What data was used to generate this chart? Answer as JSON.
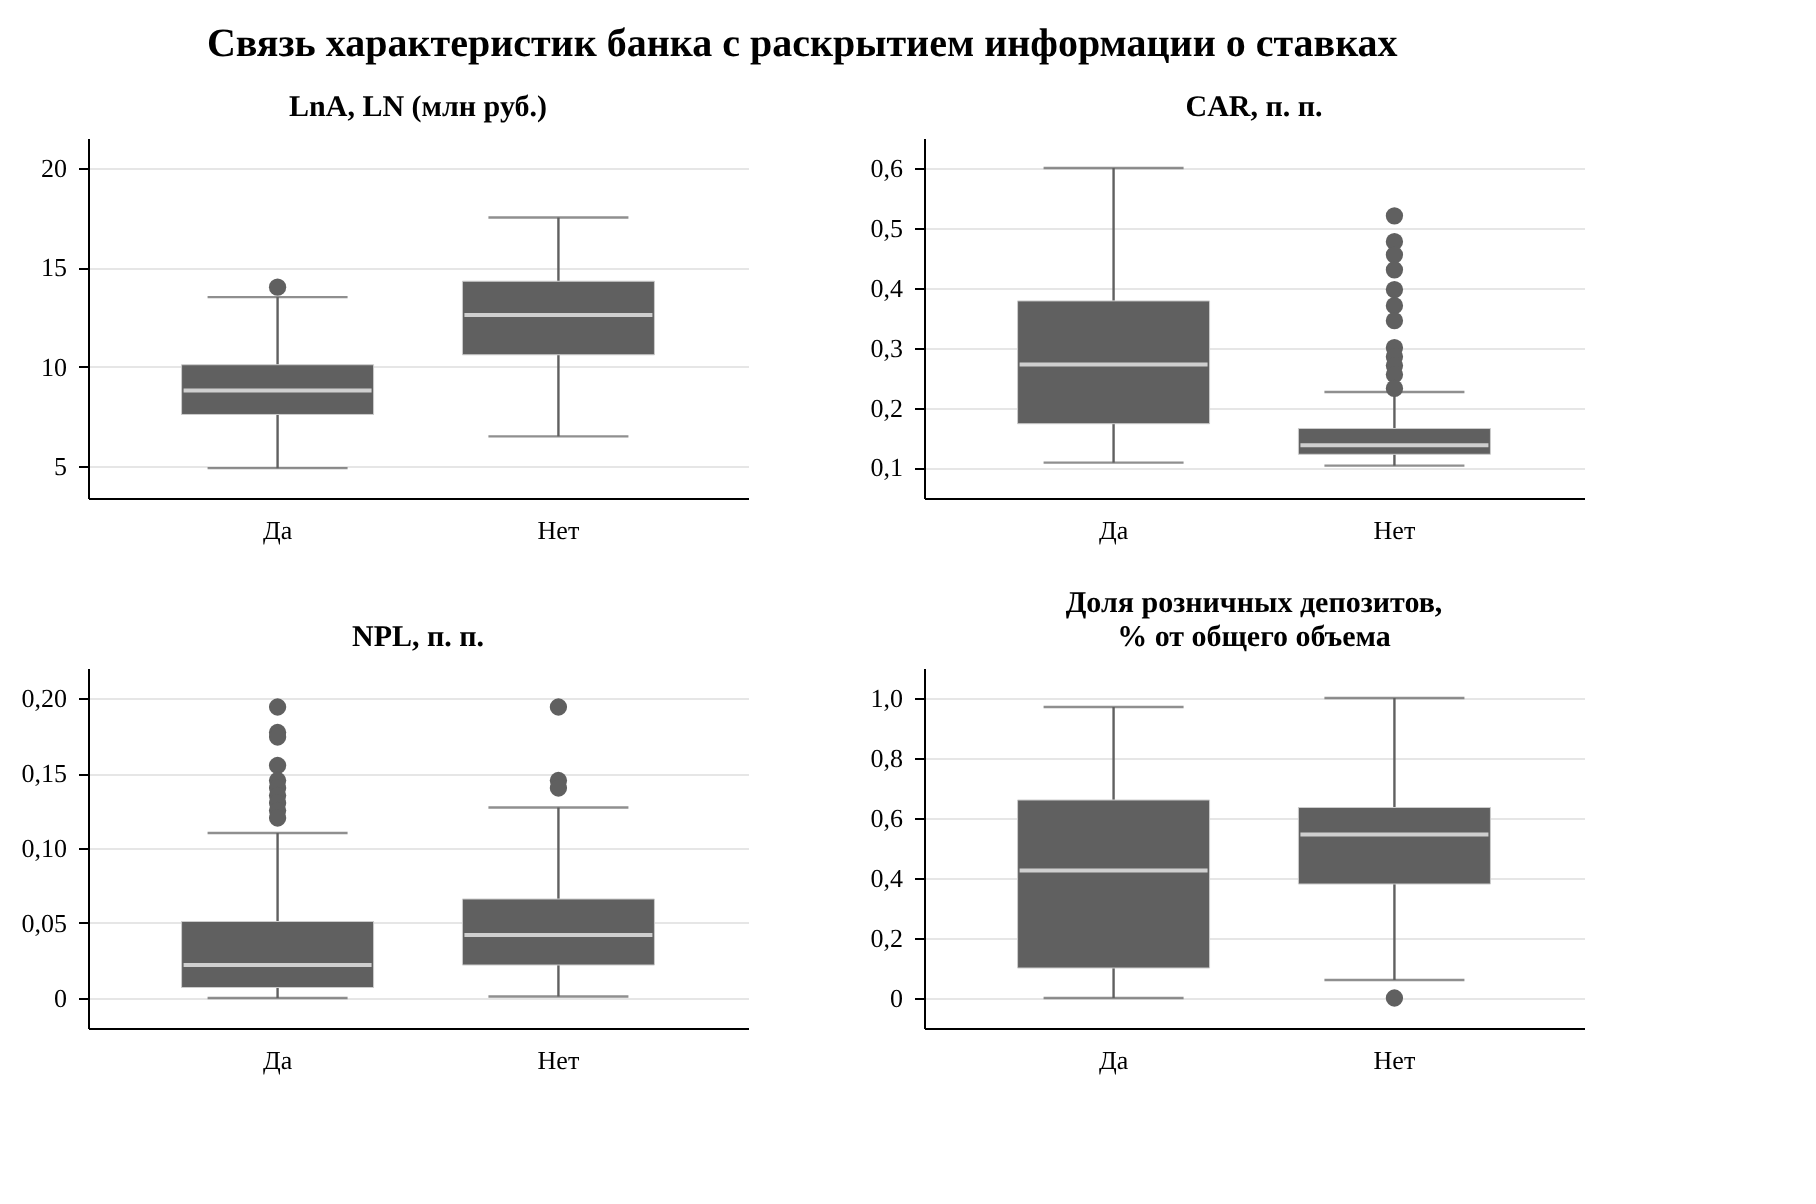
{
  "chart_data": [
    {
      "type": "box",
      "title": "LnA, LN (млн руб.)",
      "annotations": [
        "Связь характеристик банка с раскрытием информации о ставках"
      ],
      "categories": [
        "Да",
        "Нет"
      ],
      "ylim": [
        3.4,
        21.5
      ],
      "yticks": [
        5,
        10,
        15,
        20
      ],
      "grid": "y",
      "series": [
        {
          "color": "#606060",
          "boxes": [
            {
              "low": 4.9,
              "q1": 7.6,
              "median": 8.8,
              "q3": 10.1,
              "high": 13.5,
              "outliers": [
                14.0
              ]
            },
            {
              "low": 6.5,
              "q1": 10.6,
              "median": 12.6,
              "q3": 14.3,
              "high": 17.5
            }
          ]
        }
      ]
    },
    {
      "type": "box",
      "title": "CAR, п. п.",
      "categories": [
        "Да",
        "Нет"
      ],
      "ylim": [
        0.049,
        0.65
      ],
      "yticks": [
        {
          "value": 0.1,
          "label": "0,1"
        },
        {
          "value": 0.2,
          "label": "0,2"
        },
        {
          "value": 0.3,
          "label": "0,3"
        },
        {
          "value": 0.4,
          "label": "0,4"
        },
        {
          "value": 0.5,
          "label": "0,5"
        },
        {
          "value": 0.6,
          "label": "0,6"
        }
      ],
      "grid": "y",
      "series": [
        {
          "color": "#606060",
          "boxes": [
            {
              "low": 0.108,
              "q1": 0.173,
              "median": 0.272,
              "q3": 0.378,
              "high": 0.6
            },
            {
              "low": 0.103,
              "q1": 0.122,
              "median": 0.137,
              "q3": 0.165,
              "high": 0.226,
              "outliers": [
                0.52,
                0.477,
                0.455,
                0.43,
                0.397,
                0.37,
                0.345,
                0.3,
                0.285,
                0.27,
                0.255,
                0.232
              ]
            }
          ]
        }
      ]
    },
    {
      "type": "box",
      "title": "NPL, п. п.",
      "categories": [
        "Да",
        "Нет"
      ],
      "ylim": [
        -0.02,
        0.22
      ],
      "yticks": [
        0,
        {
          "value": 0.05,
          "label": "0,05"
        },
        {
          "value": 0.1,
          "label": "0,10"
        },
        {
          "value": 0.15,
          "label": "0,15"
        },
        {
          "value": 0.2,
          "label": "0,20"
        }
      ],
      "grid": "y",
      "series": [
        {
          "color": "#606060",
          "boxes": [
            {
              "low": 0.0,
              "q1": 0.007,
              "median": 0.022,
              "q3": 0.051,
              "high": 0.11,
              "outliers": [
                0.194,
                0.177,
                0.174,
                0.155,
                0.145,
                0.14,
                0.135,
                0.13,
                0.125,
                0.12
              ]
            },
            {
              "low": 0.001,
              "q1": 0.022,
              "median": 0.042,
              "q3": 0.066,
              "high": 0.127,
              "outliers": [
                0.194,
                0.145,
                0.14
              ]
            }
          ]
        }
      ]
    },
    {
      "type": "box",
      "title": "Доля розничных депозитов,\n% от общего объема",
      "categories": [
        "Да",
        "Нет"
      ],
      "ylim": [
        -0.1,
        1.1
      ],
      "yticks": [
        0,
        {
          "value": 0.2,
          "label": "0,2"
        },
        {
          "value": 0.4,
          "label": "0,4"
        },
        {
          "value": 0.6,
          "label": "0,6"
        },
        {
          "value": 0.8,
          "label": "0,8"
        },
        {
          "value": 1.0,
          "label": "1,0"
        }
      ],
      "grid": "y",
      "series": [
        {
          "color": "#606060",
          "boxes": [
            {
              "low": 0.0,
              "q1": 0.1,
              "median": 0.425,
              "q3": 0.66,
              "high": 0.97
            },
            {
              "low": 0.06,
              "q1": 0.38,
              "median": 0.545,
              "q3": 0.635,
              "high": 1.0,
              "outliers": [
                0.0
              ]
            }
          ]
        }
      ]
    }
  ]
}
